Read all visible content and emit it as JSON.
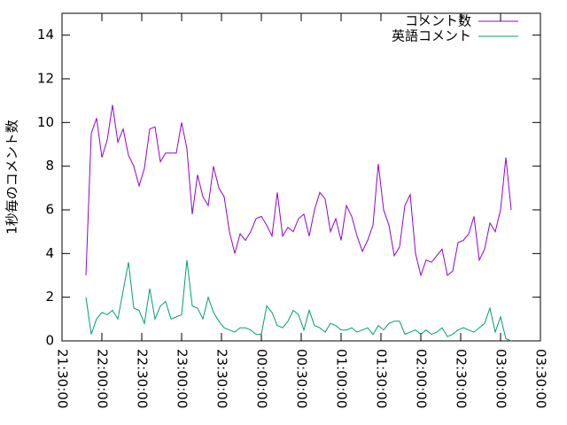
{
  "chart_data": {
    "type": "line",
    "ylabel": "1秒毎のコメント数",
    "x": [
      "21:48:00",
      "21:52:00",
      "21:56:00",
      "22:00:00",
      "22:04:00",
      "22:08:00",
      "22:12:00",
      "22:16:00",
      "22:20:00",
      "22:24:00",
      "22:28:00",
      "22:32:00",
      "22:36:00",
      "22:40:00",
      "22:44:00",
      "22:48:00",
      "22:52:00",
      "22:56:00",
      "23:00:00",
      "23:04:00",
      "23:08:00",
      "23:12:00",
      "23:16:00",
      "23:20:00",
      "23:24:00",
      "23:28:00",
      "23:32:00",
      "23:36:00",
      "23:40:00",
      "23:44:00",
      "23:48:00",
      "23:52:00",
      "23:56:00",
      "00:00:00",
      "00:04:00",
      "00:08:00",
      "00:12:00",
      "00:16:00",
      "00:20:00",
      "00:24:00",
      "00:28:00",
      "00:32:00",
      "00:36:00",
      "00:40:00",
      "00:44:00",
      "00:48:00",
      "00:52:00",
      "00:56:00",
      "01:00:00",
      "01:04:00",
      "01:08:00",
      "01:12:00",
      "01:16:00",
      "01:20:00",
      "01:24:00",
      "01:28:00",
      "01:32:00",
      "01:36:00",
      "01:40:00",
      "01:44:00",
      "01:48:00",
      "01:52:00",
      "01:56:00",
      "02:00:00",
      "02:04:00",
      "02:08:00",
      "02:12:00",
      "02:16:00",
      "02:20:00",
      "02:24:00",
      "02:28:00",
      "02:32:00",
      "02:36:00",
      "02:40:00",
      "02:44:00",
      "02:48:00",
      "02:52:00",
      "02:56:00",
      "03:00:00",
      "03:04:00",
      "03:08:00"
    ],
    "series": [
      {
        "name": "コメント数",
        "color": "#9400d3",
        "values": [
          3.0,
          9.5,
          10.2,
          8.4,
          9.2,
          10.8,
          9.1,
          9.7,
          8.5,
          8.0,
          7.1,
          7.9,
          9.7,
          9.8,
          8.2,
          8.6,
          8.6,
          8.6,
          10.0,
          8.8,
          5.8,
          7.6,
          6.6,
          6.2,
          8.0,
          7.0,
          6.6,
          5.0,
          4.0,
          4.9,
          4.6,
          5.0,
          5.6,
          5.7,
          5.3,
          4.8,
          6.8,
          4.8,
          5.2,
          5.0,
          5.6,
          5.8,
          4.8,
          6.0,
          6.8,
          6.5,
          5.0,
          5.6,
          4.6,
          6.2,
          5.7,
          4.8,
          4.1,
          4.6,
          5.3,
          8.1,
          6.0,
          5.3,
          3.9,
          4.3,
          6.2,
          6.7,
          4.0,
          3.0,
          3.7,
          3.6,
          3.9,
          4.2,
          3.0,
          3.2,
          4.5,
          4.6,
          4.9,
          5.7,
          3.7,
          4.2,
          5.4,
          5.0,
          6.0,
          8.4,
          6.0
        ]
      },
      {
        "name": "英語コメント",
        "color": "#009e73",
        "values": [
          2.0,
          0.3,
          1.0,
          1.3,
          1.2,
          1.4,
          1.0,
          2.3,
          3.6,
          1.5,
          1.4,
          0.8,
          2.4,
          1.0,
          1.6,
          1.8,
          1.0,
          1.1,
          1.2,
          3.7,
          1.6,
          1.5,
          1.0,
          2.0,
          1.3,
          0.9,
          0.6,
          0.5,
          0.4,
          0.6,
          0.6,
          0.5,
          0.3,
          0.3,
          1.6,
          1.3,
          0.7,
          0.6,
          0.9,
          1.4,
          1.2,
          0.5,
          1.4,
          0.7,
          0.6,
          0.4,
          0.8,
          0.7,
          0.5,
          0.5,
          0.6,
          0.4,
          0.5,
          0.6,
          0.3,
          0.7,
          0.5,
          0.8,
          0.9,
          0.9,
          0.3,
          0.4,
          0.5,
          0.3,
          0.5,
          0.3,
          0.4,
          0.6,
          0.2,
          0.3,
          0.5,
          0.6,
          0.5,
          0.4,
          0.6,
          0.8,
          1.5,
          0.4,
          1.1,
          0.1,
          0.0
        ]
      }
    ],
    "xlim": [
      "21:30:00",
      "03:30:00"
    ],
    "xticks": [
      "21:30:00",
      "22:00:00",
      "22:30:00",
      "23:00:00",
      "23:30:00",
      "00:00:00",
      "00:30:00",
      "01:00:00",
      "01:30:00",
      "02:00:00",
      "02:30:00",
      "03:00:00",
      "03:30:00"
    ],
    "ylim": [
      0,
      15
    ],
    "yticks": [
      0,
      2,
      4,
      6,
      8,
      10,
      12,
      14
    ],
    "legend": "top-right"
  }
}
